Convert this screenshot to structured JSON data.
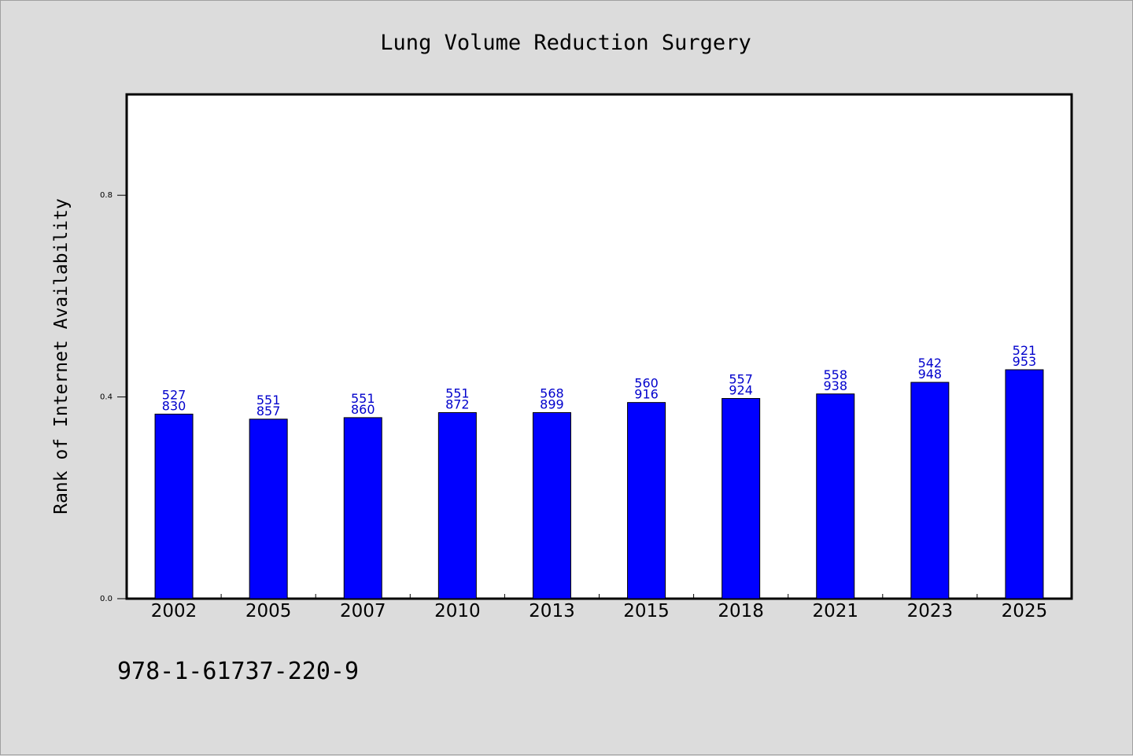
{
  "chart_data": {
    "type": "bar",
    "title": "Lung Volume Reduction Surgery",
    "xlabel": "",
    "ylabel": "Rank of Internet Availability",
    "categories": [
      "2002",
      "2005",
      "2007",
      "2010",
      "2013",
      "2015",
      "2018",
      "2021",
      "2023",
      "2025"
    ],
    "values": [
      0.366,
      0.356,
      0.359,
      0.369,
      0.369,
      0.389,
      0.397,
      0.406,
      0.429,
      0.454
    ],
    "data_labels": [
      [
        "527",
        "830"
      ],
      [
        "551",
        "857"
      ],
      [
        "551",
        "860"
      ],
      [
        "551",
        "872"
      ],
      [
        "568",
        "899"
      ],
      [
        "560",
        "916"
      ],
      [
        "557",
        "924"
      ],
      [
        "558",
        "938"
      ],
      [
        "542",
        "948"
      ],
      [
        "521",
        "953"
      ]
    ],
    "yticks": [
      "0.0",
      "0.4",
      "0.8"
    ],
    "ytick_values": [
      0.0,
      0.4,
      0.8
    ],
    "ylim": [
      0,
      1.0
    ],
    "grid": false,
    "legend": "none",
    "bar_color": "#0000ff",
    "label_color": "#0000cc"
  },
  "footer": {
    "isbn": "978-1-61737-220-9"
  }
}
